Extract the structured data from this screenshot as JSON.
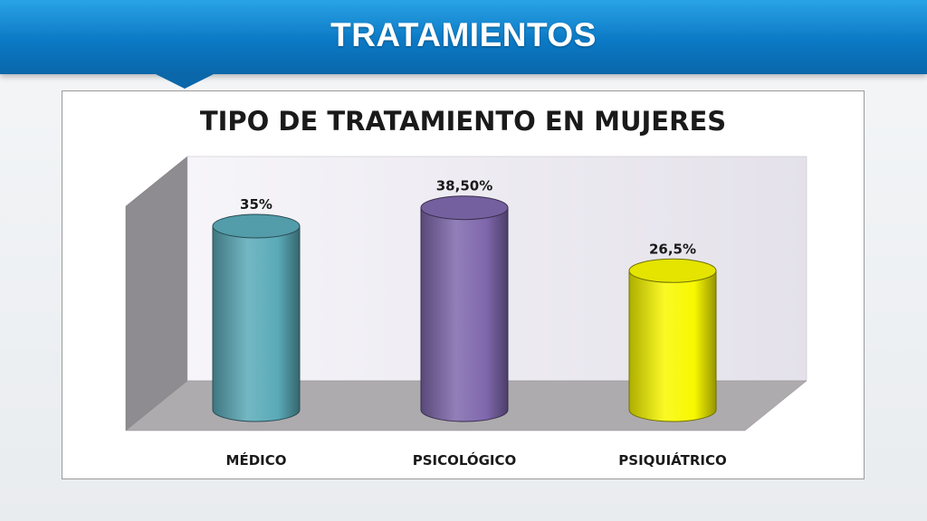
{
  "header": {
    "title": "TRATAMIENTOS"
  },
  "chart_data": {
    "type": "bar",
    "title": "TIPO DE TRATAMIENTO EN MUJERES",
    "categories": [
      "MÉDICO",
      "PSICOLÓGICO",
      "PSIQUIÁTRICO"
    ],
    "values": [
      35,
      38.5,
      26.5
    ],
    "value_labels": [
      "35%",
      "38,50%",
      "26,5%"
    ],
    "colors": [
      "#5aaab8",
      "#7f68ad",
      "#f8f800"
    ],
    "xlabel": "",
    "ylabel": "",
    "ylim": [
      0,
      40
    ],
    "grid": false,
    "legend": "none",
    "style": "3d-cylinder"
  }
}
